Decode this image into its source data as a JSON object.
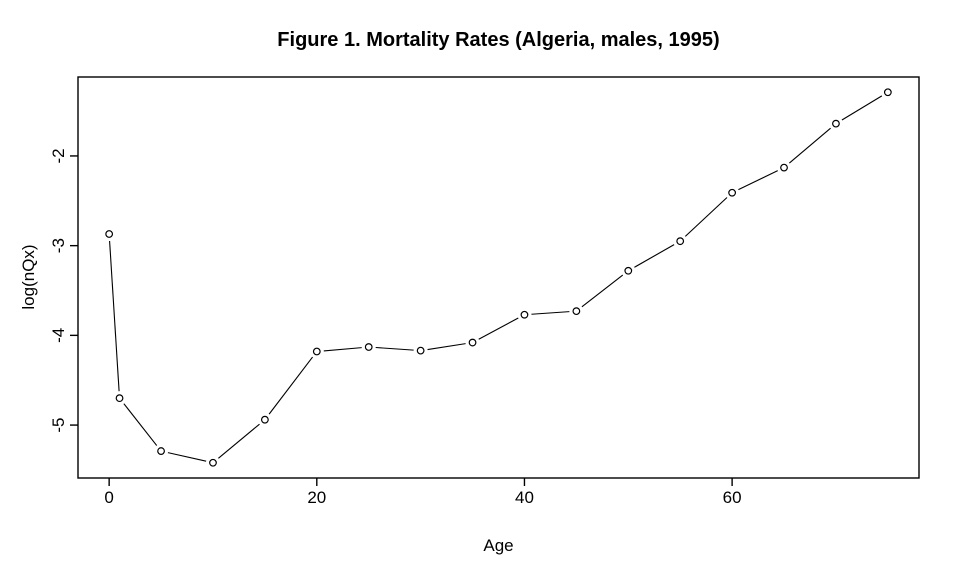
{
  "figure": {
    "background_color": "#ffffff",
    "axis_color": "#000000",
    "series_color": "#000000",
    "marker_fill": "#ffffff"
  },
  "chart_data": {
    "type": "line",
    "title": "Figure 1. Mortality Rates (Algeria, males, 1995)",
    "xlabel": "Age",
    "ylabel": "log(nQx)",
    "x": [
      0,
      1,
      5,
      10,
      15,
      20,
      25,
      30,
      35,
      40,
      45,
      50,
      55,
      60,
      65,
      70,
      75
    ],
    "y": [
      -2.87,
      -4.7,
      -5.29,
      -5.42,
      -4.94,
      -4.18,
      -4.13,
      -4.17,
      -4.08,
      -3.77,
      -3.73,
      -3.28,
      -2.95,
      -2.41,
      -2.13,
      -1.64,
      -1.29
    ],
    "x_tick_values": [
      0,
      20,
      40,
      60
    ],
    "x_tick_labels": [
      "0",
      "20",
      "40",
      "60"
    ],
    "y_tick_values": [
      -2,
      -3,
      -4,
      -5
    ],
    "y_tick_labels": [
      "-2",
      "-3",
      "-4",
      "-5"
    ],
    "xlim": [
      -3,
      78
    ],
    "ylim": [
      -5.59,
      -1.12
    ],
    "grid": false,
    "legend": "none",
    "marker_style": "open-circle",
    "line_style": "segments-with-gaps-at-points"
  }
}
